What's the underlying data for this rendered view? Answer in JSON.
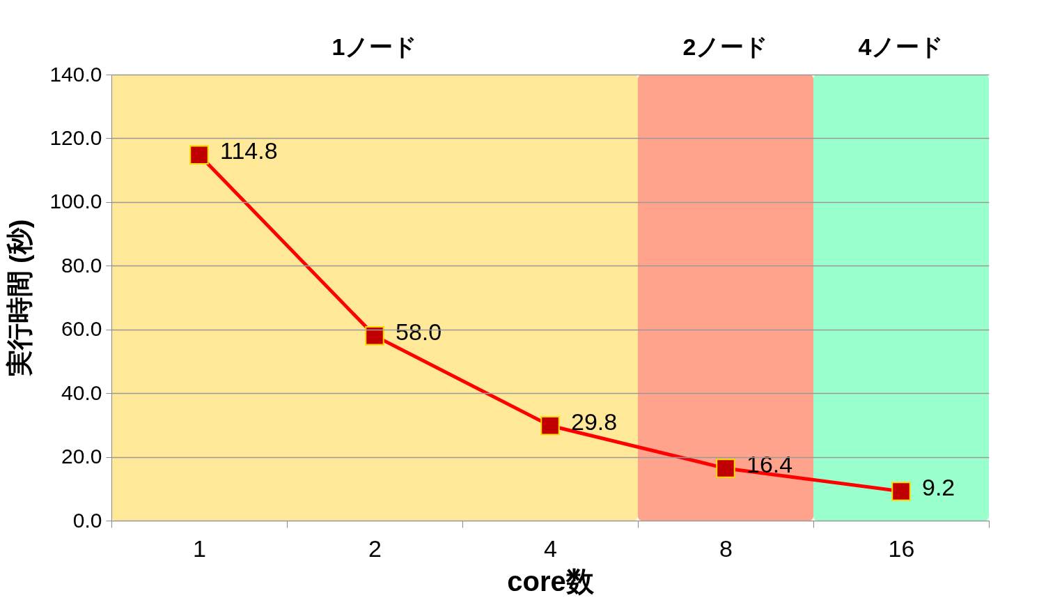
{
  "chart_data": {
    "type": "line",
    "xlabel": "core数",
    "ylabel": "実行時間 (秒)",
    "categories": [
      "1",
      "2",
      "4",
      "8",
      "16"
    ],
    "series": [
      {
        "color": "#ff0000",
        "values": [
          114.8,
          58.0,
          29.8,
          16.4,
          9.2
        ],
        "value_labels": [
          "114.8",
          "58.0",
          "29.8",
          "16.4",
          "9.2"
        ]
      }
    ],
    "marker": "square",
    "ylim": [
      0,
      140
    ],
    "yticks": [
      {
        "value": 0,
        "label": "0.0"
      },
      {
        "value": 20,
        "label": "20.0"
      },
      {
        "value": 40,
        "label": "40.0"
      },
      {
        "value": 60,
        "label": "60.0"
      },
      {
        "value": 80,
        "label": "80.0"
      },
      {
        "value": 100,
        "label": "100.0"
      },
      {
        "value": 120,
        "label": "120.0"
      },
      {
        "value": 140,
        "label": "140.0"
      }
    ],
    "grid": "y",
    "bands": [
      {
        "axis": "x",
        "from": "1",
        "to": "4",
        "label": "1ノード",
        "color": "#ffe999"
      },
      {
        "axis": "x",
        "from": "8",
        "to": "8",
        "label": "2ノード",
        "color": "#ffa38c"
      },
      {
        "axis": "x",
        "from": "16",
        "to": "16",
        "label": "4ノード",
        "color": "#99ffcc"
      }
    ]
  }
}
